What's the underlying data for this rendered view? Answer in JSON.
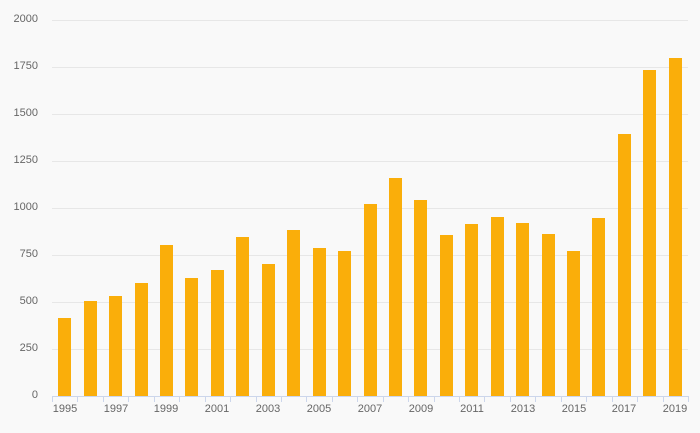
{
  "chart_data": {
    "type": "bar",
    "title": "",
    "xlabel": "",
    "ylabel": "",
    "categories": [
      "1995",
      "1996",
      "1997",
      "1998",
      "1999",
      "2000",
      "2001",
      "2002",
      "2003",
      "2004",
      "2005",
      "2006",
      "2007",
      "2008",
      "2009",
      "2010",
      "2011",
      "2012",
      "2013",
      "2014",
      "2015",
      "2016",
      "2017",
      "2018",
      "2019"
    ],
    "values": [
      415,
      505,
      530,
      600,
      805,
      630,
      670,
      845,
      700,
      885,
      785,
      770,
      1020,
      1160,
      1040,
      855,
      915,
      950,
      920,
      860,
      770,
      945,
      1395,
      1735,
      1800
    ],
    "ylim": [
      0,
      2000
    ],
    "yticks": [
      0,
      250,
      500,
      750,
      1000,
      1250,
      1500,
      1750,
      2000
    ],
    "ytick_labels": [
      "0",
      "250",
      "500",
      "750",
      "1000",
      "1250",
      "1500",
      "1750",
      "2000"
    ],
    "xtick_labels_shown": [
      "1995",
      "1997",
      "1999",
      "2001",
      "2003",
      "2005",
      "2007",
      "2009",
      "2011",
      "2013",
      "2015",
      "2017",
      "2019"
    ],
    "grid": "horizontal",
    "legend": "none",
    "tick_placement": "between-categories"
  },
  "colors": {
    "bar": "#faae0a",
    "background": "#f9f9f9",
    "gridline": "#e7e7e7",
    "axis_line": "#ccd6eb",
    "label_text": "#666666"
  }
}
